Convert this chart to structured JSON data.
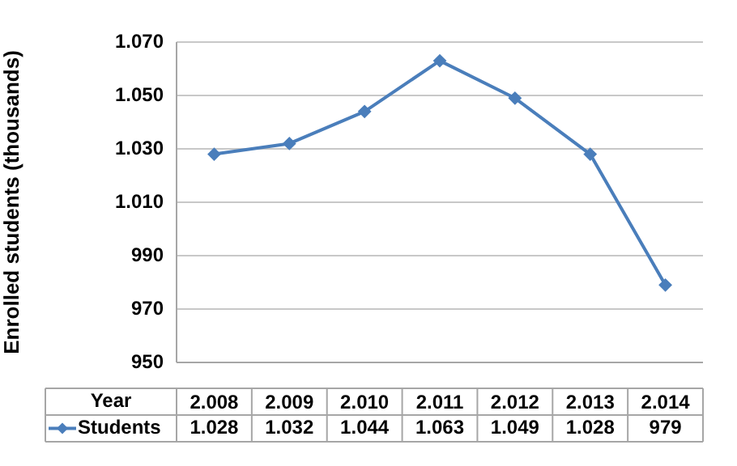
{
  "chart_data": {
    "type": "line",
    "xlabel": "Year",
    "ylabel": "Enrolled students (thousands)",
    "categories": [
      "2.008",
      "2.009",
      "2.010",
      "2.011",
      "2.012",
      "2.013",
      "2.014"
    ],
    "series": [
      {
        "name": "Students",
        "color": "#4a7ebb",
        "values": [
          1028,
          1032,
          1044,
          1063,
          1049,
          1028,
          979
        ],
        "value_labels": [
          "1.028",
          "1.032",
          "1.044",
          "1.063",
          "1.049",
          "1.028",
          "979"
        ]
      }
    ],
    "ylim": [
      950,
      1070
    ],
    "yticks": [
      950,
      970,
      990,
      {
        "value": 1010,
        "label": "1.010"
      },
      {
        "value": 1030,
        "label": "1.030"
      },
      {
        "value": 1050,
        "label": "1.050"
      },
      {
        "value": 1070,
        "label": "1.070"
      }
    ],
    "grid": "y",
    "legend": "bottom",
    "marker": "diamond",
    "line_style": "solid"
  }
}
